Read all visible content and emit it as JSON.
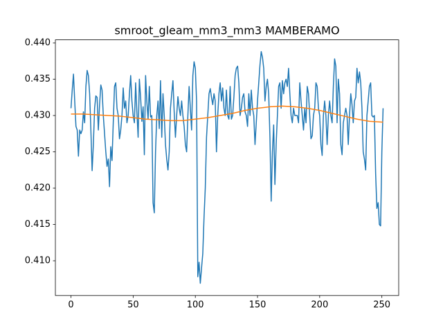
{
  "chart_data": {
    "type": "line",
    "title": "smroot_gleam_mm3_mm3 MAMBERAMO",
    "x": [
      0,
      1,
      2,
      3,
      4,
      5,
      6,
      7,
      8,
      9,
      10,
      11,
      12,
      13,
      14,
      15,
      16,
      17,
      18,
      19,
      20,
      21,
      22,
      23,
      24,
      25,
      26,
      27,
      28,
      29,
      30,
      31,
      32,
      33,
      34,
      35,
      36,
      37,
      38,
      39,
      40,
      41,
      42,
      43,
      44,
      45,
      46,
      47,
      48,
      49,
      50,
      51,
      52,
      53,
      54,
      55,
      56,
      57,
      58,
      59,
      60,
      61,
      62,
      63,
      64,
      65,
      66,
      67,
      68,
      69,
      70,
      71,
      72,
      73,
      74,
      75,
      76,
      77,
      78,
      79,
      80,
      81,
      82,
      83,
      84,
      85,
      86,
      87,
      88,
      89,
      90,
      91,
      92,
      93,
      94,
      95,
      96,
      97,
      98,
      99,
      100,
      101,
      102,
      103,
      104,
      105,
      106,
      107,
      108,
      109,
      110,
      111,
      112,
      113,
      114,
      115,
      116,
      117,
      118,
      119,
      120,
      121,
      122,
      123,
      124,
      125,
      126,
      127,
      128,
      129,
      130,
      131,
      132,
      133,
      134,
      135,
      136,
      137,
      138,
      139,
      140,
      141,
      142,
      143,
      144,
      145,
      146,
      147,
      148,
      149,
      150,
      151,
      152,
      153,
      154,
      155,
      156,
      157,
      158,
      159,
      160,
      161,
      162,
      163,
      164,
      165,
      166,
      167,
      168,
      169,
      170,
      171,
      172,
      173,
      174,
      175,
      176,
      177,
      178,
      179,
      180,
      181,
      182,
      183,
      184,
      185,
      186,
      187,
      188,
      189,
      190,
      191,
      192,
      193,
      194,
      195,
      196,
      197,
      198,
      199,
      200,
      201,
      202,
      203,
      204,
      205,
      206,
      207,
      208,
      209,
      210,
      211,
      212,
      213,
      214,
      215,
      216,
      217,
      218,
      219,
      220,
      221,
      222,
      223,
      224,
      225,
      226,
      227,
      228,
      229,
      230,
      231,
      232,
      233,
      234,
      235,
      236,
      237,
      238,
      239,
      240,
      241,
      242,
      243,
      244,
      245,
      246,
      247,
      248,
      249,
      250,
      251
    ],
    "series": [
      {
        "color": "#1f77b4",
        "values": [
          0.431,
          0.4335,
          0.4357,
          0.432,
          0.4285,
          0.428,
          0.4244,
          0.428,
          0.4275,
          0.428,
          0.4305,
          0.429,
          0.434,
          0.4362,
          0.4355,
          0.433,
          0.428,
          0.4224,
          0.426,
          0.431,
          0.4327,
          0.4325,
          0.428,
          0.4315,
          0.4342,
          0.4335,
          0.43,
          0.4275,
          0.425,
          0.423,
          0.424,
          0.4202,
          0.4257,
          0.4238,
          0.429,
          0.434,
          0.4345,
          0.431,
          0.43,
          0.4268,
          0.428,
          0.43,
          0.4338,
          0.431,
          0.432,
          0.429,
          0.43,
          0.433,
          0.4355,
          0.432,
          0.43,
          0.429,
          0.4345,
          0.4305,
          0.427,
          0.435,
          0.4325,
          0.4292,
          0.4312,
          0.4246,
          0.4355,
          0.432,
          0.4295,
          0.434,
          0.4298,
          0.43,
          0.418,
          0.4166,
          0.425,
          0.43,
          0.432,
          0.4282,
          0.4348,
          0.427,
          0.433,
          0.43,
          0.426,
          0.424,
          0.4225,
          0.425,
          0.431,
          0.433,
          0.4348,
          0.4305,
          0.427,
          0.43,
          0.4326,
          0.431,
          0.43,
          0.432,
          0.43,
          0.4285,
          0.426,
          0.425,
          0.43,
          0.434,
          0.431,
          0.428,
          0.4355,
          0.4374,
          0.4365,
          0.432,
          0.4078,
          0.4098,
          0.4069,
          0.409,
          0.411,
          0.416,
          0.42,
          0.427,
          0.43,
          0.433,
          0.4337,
          0.4325,
          0.4315,
          0.433,
          0.432,
          0.425,
          0.43,
          0.433,
          0.4345,
          0.432,
          0.4338,
          0.431,
          0.43,
          0.4335,
          0.43,
          0.4295,
          0.434,
          0.4295,
          0.43,
          0.4325,
          0.4355,
          0.4365,
          0.4368,
          0.4345,
          0.43,
          0.431,
          0.4325,
          0.433,
          0.4305,
          0.43,
          0.4285,
          0.433,
          0.43,
          0.4335,
          0.431,
          0.43,
          0.426,
          0.429,
          0.432,
          0.4345,
          0.437,
          0.4388,
          0.438,
          0.4365,
          0.432,
          0.434,
          0.435,
          0.433,
          0.427,
          0.4182,
          0.425,
          0.4287,
          0.4205,
          0.426,
          0.43,
          0.434,
          0.4345,
          0.431,
          0.4348,
          0.433,
          0.4345,
          0.435,
          0.434,
          0.4365,
          0.433,
          0.43,
          0.429,
          0.431,
          0.43,
          0.43,
          0.43,
          0.429,
          0.4345,
          0.432,
          0.43,
          0.428,
          0.431,
          0.429,
          0.434,
          0.433,
          0.43,
          0.4268,
          0.4272,
          0.43,
          0.431,
          0.4345,
          0.434,
          0.431,
          0.43,
          0.426,
          0.4245,
          0.43,
          0.432,
          0.43,
          0.426,
          0.43,
          0.432,
          0.43,
          0.429,
          0.434,
          0.4378,
          0.4368,
          0.429,
          0.435,
          0.433,
          0.426,
          0.4246,
          0.429,
          0.43,
          0.431,
          0.43,
          0.426,
          0.43,
          0.433,
          0.4315,
          0.429,
          0.432,
          0.4325,
          0.4365,
          0.4345,
          0.436,
          0.4345,
          0.431,
          0.425,
          0.424,
          0.4225,
          0.43,
          0.432,
          0.434,
          0.4345,
          0.43,
          0.4298,
          0.43,
          0.422,
          0.4172,
          0.418,
          0.415,
          0.4148,
          0.425,
          0.431
        ]
      },
      {
        "color": "#ff7f0e",
        "x": [
          0,
          10,
          20,
          30,
          40,
          50,
          60,
          70,
          80,
          90,
          100,
          110,
          120,
          130,
          140,
          150,
          160,
          170,
          180,
          190,
          200,
          210,
          220,
          230,
          240,
          250,
          251
        ],
        "values": [
          0.4302,
          0.4302,
          0.4301,
          0.43,
          0.4299,
          0.4297,
          0.4295,
          0.4294,
          0.4293,
          0.4293,
          0.4295,
          0.4297,
          0.43,
          0.4303,
          0.4307,
          0.431,
          0.4312,
          0.4313,
          0.4312,
          0.431,
          0.4307,
          0.4303,
          0.4299,
          0.4295,
          0.4292,
          0.4291,
          0.4291
        ]
      }
    ],
    "xlim": [
      -12.55,
      263.55
    ],
    "ylim": [
      0.40522,
      0.44042
    ],
    "xticks": [
      0,
      50,
      100,
      150,
      200,
      250
    ],
    "yticks": [
      {
        "value": 0.41,
        "label": "0.410"
      },
      {
        "value": 0.415,
        "label": "0.415"
      },
      {
        "value": 0.42,
        "label": "0.420"
      },
      {
        "value": 0.425,
        "label": "0.425"
      },
      {
        "value": 0.43,
        "label": "0.430"
      },
      {
        "value": 0.435,
        "label": "0.435"
      },
      {
        "value": 0.44,
        "label": "0.440"
      }
    ]
  }
}
